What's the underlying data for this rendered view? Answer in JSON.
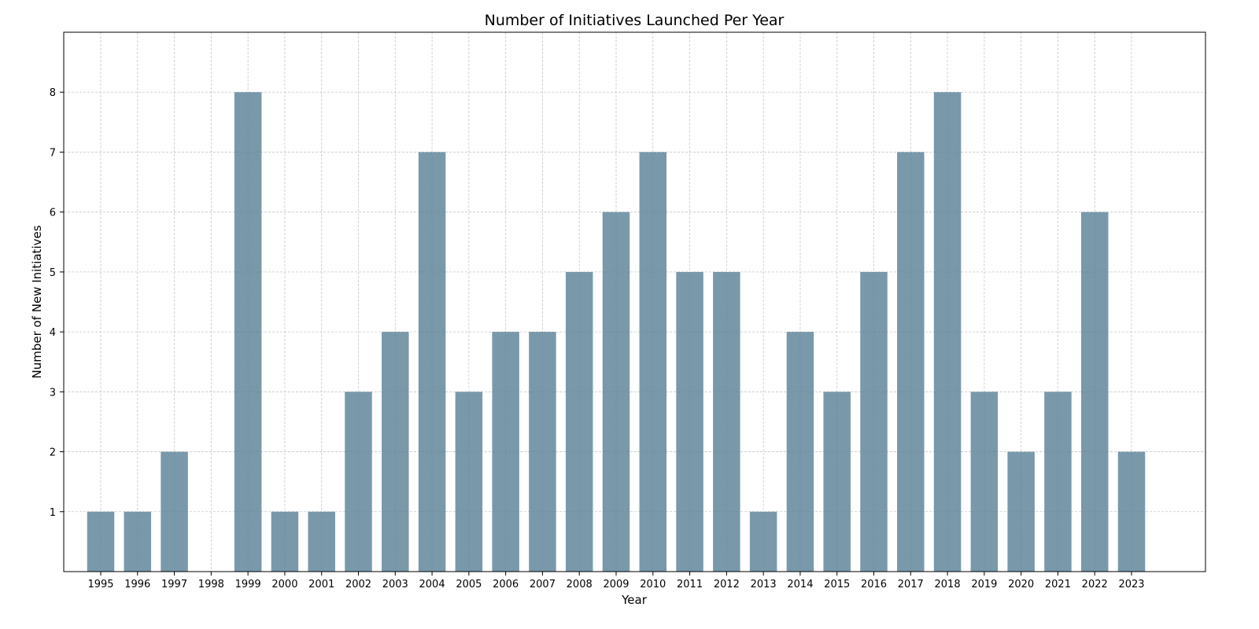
{
  "chart_data": {
    "type": "bar",
    "title": "Number of Initiatives Launched Per Year",
    "xlabel": "Year",
    "ylabel": "Number of New Initiatives",
    "categories": [
      "1995",
      "1996",
      "1997",
      "1998",
      "1999",
      "2000",
      "2001",
      "2002",
      "2003",
      "2004",
      "2005",
      "2006",
      "2007",
      "2008",
      "2009",
      "2010",
      "2011",
      "2012",
      "2013",
      "2014",
      "2015",
      "2016",
      "2017",
      "2018",
      "2019",
      "2020",
      "2021",
      "2022",
      "2023"
    ],
    "values": [
      1,
      1,
      2,
      0,
      8,
      1,
      1,
      3,
      4,
      7,
      3,
      4,
      4,
      5,
      6,
      7,
      5,
      5,
      1,
      4,
      3,
      5,
      7,
      8,
      3,
      2,
      3,
      6,
      2
    ],
    "ylim": [
      0,
      9
    ],
    "yticks": [
      1,
      2,
      3,
      4,
      5,
      6,
      7,
      8
    ],
    "grid": true,
    "bar_color": "#5b8299"
  }
}
